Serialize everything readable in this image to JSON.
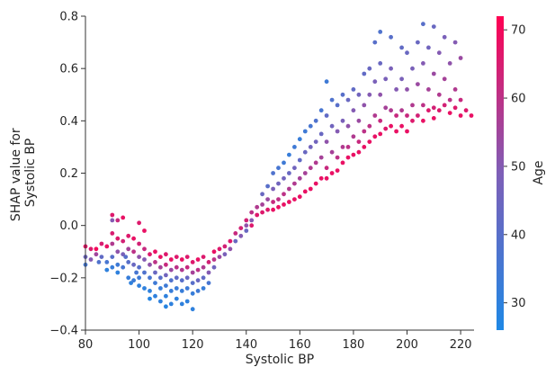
{
  "chart_data": {
    "type": "scatter",
    "title": "",
    "xlabel": "Systolic BP",
    "ylabel_lines": [
      "SHAP value for",
      "Systolic BP"
    ],
    "xlim": [
      80,
      225
    ],
    "ylim": [
      -0.4,
      0.8
    ],
    "xticks": [
      80,
      100,
      120,
      140,
      160,
      180,
      200,
      220
    ],
    "xtick_labels": [
      "80",
      "100",
      "120",
      "140",
      "160",
      "180",
      "200",
      "220"
    ],
    "yticks": [
      -0.4,
      -0.2,
      0.0,
      0.2,
      0.4,
      0.6,
      0.8
    ],
    "ytick_labels": [
      "−0.4",
      "−0.2",
      "0.0",
      "0.2",
      "0.4",
      "0.6",
      "0.8"
    ],
    "grid": false,
    "colorbar": {
      "label": "Age",
      "range": [
        26,
        72
      ],
      "ticks": [
        30,
        40,
        50,
        60,
        70
      ],
      "tick_labels": [
        "30",
        "40",
        "50",
        "60",
        "70"
      ],
      "color_low": "#1e88e5",
      "color_mid": "#7e5fb7",
      "color_high": "#ff0052"
    },
    "points": [
      [
        80,
        -0.08,
        68
      ],
      [
        80,
        -0.12,
        45
      ],
      [
        80,
        -0.15,
        35
      ],
      [
        82,
        -0.09,
        66
      ],
      [
        82,
        -0.13,
        50
      ],
      [
        84,
        -0.09,
        70
      ],
      [
        84,
        -0.11,
        55
      ],
      [
        85,
        -0.14,
        38
      ],
      [
        86,
        -0.07,
        65
      ],
      [
        86,
        -0.12,
        42
      ],
      [
        88,
        -0.08,
        68
      ],
      [
        88,
        -0.14,
        36
      ],
      [
        88,
        -0.17,
        30
      ],
      [
        90,
        0.04,
        66
      ],
      [
        90,
        0.02,
        50
      ],
      [
        90,
        -0.03,
        65
      ],
      [
        90,
        -0.07,
        58
      ],
      [
        90,
        -0.12,
        40
      ],
      [
        90,
        -0.16,
        32
      ],
      [
        92,
        0.02,
        62
      ],
      [
        92,
        -0.05,
        66
      ],
      [
        92,
        -0.1,
        52
      ],
      [
        92,
        -0.15,
        34
      ],
      [
        92,
        -0.18,
        30
      ],
      [
        94,
        0.03,
        68
      ],
      [
        94,
        -0.06,
        64
      ],
      [
        94,
        -0.11,
        48
      ],
      [
        94,
        -0.16,
        36
      ],
      [
        95,
        -0.12,
        40
      ],
      [
        96,
        -0.04,
        66
      ],
      [
        96,
        -0.09,
        56
      ],
      [
        96,
        -0.14,
        40
      ],
      [
        96,
        -0.2,
        32
      ],
      [
        97,
        -0.22,
        30
      ],
      [
        98,
        -0.05,
        68
      ],
      [
        98,
        -0.1,
        60
      ],
      [
        98,
        -0.15,
        44
      ],
      [
        98,
        -0.21,
        33
      ],
      [
        99,
        -0.18,
        36
      ],
      [
        100,
        0.01,
        66
      ],
      [
        100,
        -0.07,
        64
      ],
      [
        100,
        -0.12,
        52
      ],
      [
        100,
        -0.16,
        40
      ],
      [
        100,
        -0.2,
        34
      ],
      [
        100,
        -0.23,
        30
      ],
      [
        102,
        -0.02,
        68
      ],
      [
        102,
        -0.09,
        62
      ],
      [
        102,
        -0.13,
        50
      ],
      [
        102,
        -0.18,
        38
      ],
      [
        102,
        -0.24,
        30
      ],
      [
        104,
        -0.11,
        66
      ],
      [
        104,
        -0.15,
        52
      ],
      [
        104,
        -0.2,
        36
      ],
      [
        104,
        -0.25,
        30
      ],
      [
        104,
        -0.28,
        28
      ],
      [
        106,
        -0.1,
        68
      ],
      [
        106,
        -0.14,
        60
      ],
      [
        106,
        -0.18,
        44
      ],
      [
        106,
        -0.22,
        34
      ],
      [
        106,
        -0.27,
        30
      ],
      [
        108,
        -0.12,
        68
      ],
      [
        108,
        -0.16,
        56
      ],
      [
        108,
        -0.2,
        40
      ],
      [
        108,
        -0.24,
        32
      ],
      [
        108,
        -0.29,
        30
      ],
      [
        110,
        -0.11,
        66
      ],
      [
        110,
        -0.15,
        62
      ],
      [
        110,
        -0.19,
        46
      ],
      [
        110,
        -0.23,
        34
      ],
      [
        110,
        -0.27,
        30
      ],
      [
        110,
        -0.31,
        28
      ],
      [
        112,
        -0.13,
        68
      ],
      [
        112,
        -0.17,
        54
      ],
      [
        112,
        -0.21,
        38
      ],
      [
        112,
        -0.25,
        32
      ],
      [
        112,
        -0.3,
        30
      ],
      [
        114,
        -0.12,
        66
      ],
      [
        114,
        -0.16,
        60
      ],
      [
        114,
        -0.2,
        42
      ],
      [
        114,
        -0.24,
        33
      ],
      [
        114,
        -0.28,
        30
      ],
      [
        116,
        -0.13,
        68
      ],
      [
        116,
        -0.17,
        58
      ],
      [
        116,
        -0.21,
        40
      ],
      [
        116,
        -0.25,
        32
      ],
      [
        116,
        -0.3,
        30
      ],
      [
        118,
        -0.12,
        66
      ],
      [
        118,
        -0.16,
        62
      ],
      [
        118,
        -0.2,
        44
      ],
      [
        118,
        -0.24,
        34
      ],
      [
        118,
        -0.29,
        30
      ],
      [
        120,
        -0.14,
        66
      ],
      [
        120,
        -0.18,
        56
      ],
      [
        120,
        -0.22,
        40
      ],
      [
        120,
        -0.26,
        32
      ],
      [
        120,
        -0.32,
        30
      ],
      [
        122,
        -0.13,
        68
      ],
      [
        122,
        -0.17,
        60
      ],
      [
        122,
        -0.21,
        44
      ],
      [
        122,
        -0.25,
        34
      ],
      [
        124,
        -0.12,
        66
      ],
      [
        124,
        -0.16,
        58
      ],
      [
        124,
        -0.2,
        42
      ],
      [
        124,
        -0.24,
        32
      ],
      [
        126,
        -0.14,
        64
      ],
      [
        126,
        -0.18,
        50
      ],
      [
        126,
        -0.22,
        36
      ],
      [
        128,
        -0.1,
        68
      ],
      [
        128,
        -0.13,
        60
      ],
      [
        128,
        -0.16,
        46
      ],
      [
        130,
        -0.09,
        66
      ],
      [
        130,
        -0.12,
        54
      ],
      [
        132,
        -0.08,
        64
      ],
      [
        132,
        -0.11,
        48
      ],
      [
        134,
        -0.06,
        66
      ],
      [
        134,
        -0.09,
        52
      ],
      [
        136,
        -0.03,
        62
      ],
      [
        136,
        -0.06,
        44
      ],
      [
        138,
        -0.01,
        64
      ],
      [
        138,
        -0.04,
        50
      ],
      [
        140,
        0.02,
        64
      ],
      [
        140,
        0.0,
        52
      ],
      [
        140,
        -0.02,
        44
      ],
      [
        142,
        0.05,
        60
      ],
      [
        142,
        0.02,
        50
      ],
      [
        142,
        0.0,
        66
      ],
      [
        144,
        0.07,
        58
      ],
      [
        144,
        0.04,
        66
      ],
      [
        146,
        0.12,
        44
      ],
      [
        146,
        0.08,
        56
      ],
      [
        146,
        0.05,
        66
      ],
      [
        148,
        0.15,
        40
      ],
      [
        148,
        0.1,
        54
      ],
      [
        148,
        0.06,
        66
      ],
      [
        150,
        0.2,
        38
      ],
      [
        150,
        0.14,
        48
      ],
      [
        150,
        0.09,
        62
      ],
      [
        150,
        0.06,
        68
      ],
      [
        152,
        0.22,
        36
      ],
      [
        152,
        0.16,
        46
      ],
      [
        152,
        0.1,
        60
      ],
      [
        152,
        0.07,
        68
      ],
      [
        154,
        0.24,
        34
      ],
      [
        154,
        0.18,
        46
      ],
      [
        154,
        0.12,
        60
      ],
      [
        154,
        0.08,
        68
      ],
      [
        156,
        0.27,
        32
      ],
      [
        156,
        0.2,
        44
      ],
      [
        156,
        0.14,
        58
      ],
      [
        156,
        0.09,
        68
      ],
      [
        158,
        0.3,
        34
      ],
      [
        158,
        0.22,
        46
      ],
      [
        158,
        0.16,
        58
      ],
      [
        158,
        0.1,
        68
      ],
      [
        160,
        0.33,
        32
      ],
      [
        160,
        0.25,
        42
      ],
      [
        160,
        0.18,
        56
      ],
      [
        160,
        0.11,
        68
      ],
      [
        162,
        0.36,
        34
      ],
      [
        162,
        0.28,
        44
      ],
      [
        162,
        0.2,
        56
      ],
      [
        162,
        0.13,
        68
      ],
      [
        164,
        0.38,
        36
      ],
      [
        164,
        0.3,
        46
      ],
      [
        164,
        0.22,
        58
      ],
      [
        164,
        0.14,
        68
      ],
      [
        166,
        0.4,
        38
      ],
      [
        166,
        0.32,
        46
      ],
      [
        166,
        0.24,
        58
      ],
      [
        166,
        0.16,
        68
      ],
      [
        168,
        0.44,
        36
      ],
      [
        168,
        0.35,
        44
      ],
      [
        168,
        0.26,
        56
      ],
      [
        168,
        0.18,
        68
      ],
      [
        170,
        0.55,
        34
      ],
      [
        170,
        0.42,
        42
      ],
      [
        170,
        0.32,
        52
      ],
      [
        170,
        0.22,
        62
      ],
      [
        170,
        0.18,
        68
      ],
      [
        172,
        0.48,
        38
      ],
      [
        172,
        0.38,
        46
      ],
      [
        172,
        0.28,
        56
      ],
      [
        172,
        0.2,
        68
      ],
      [
        174,
        0.46,
        40
      ],
      [
        174,
        0.36,
        50
      ],
      [
        174,
        0.26,
        60
      ],
      [
        174,
        0.21,
        68
      ],
      [
        176,
        0.5,
        40
      ],
      [
        176,
        0.4,
        48
      ],
      [
        176,
        0.3,
        58
      ],
      [
        176,
        0.24,
        68
      ],
      [
        178,
        0.48,
        44
      ],
      [
        178,
        0.38,
        52
      ],
      [
        178,
        0.3,
        60
      ],
      [
        178,
        0.26,
        68
      ],
      [
        180,
        0.52,
        42
      ],
      [
        180,
        0.44,
        50
      ],
      [
        180,
        0.34,
        58
      ],
      [
        180,
        0.27,
        68
      ],
      [
        182,
        0.5,
        46
      ],
      [
        182,
        0.4,
        54
      ],
      [
        182,
        0.32,
        62
      ],
      [
        182,
        0.28,
        68
      ],
      [
        184,
        0.58,
        42
      ],
      [
        184,
        0.46,
        52
      ],
      [
        184,
        0.36,
        60
      ],
      [
        184,
        0.3,
        68
      ],
      [
        186,
        0.6,
        44
      ],
      [
        186,
        0.5,
        50
      ],
      [
        186,
        0.38,
        60
      ],
      [
        186,
        0.32,
        68
      ],
      [
        188,
        0.7,
        40
      ],
      [
        188,
        0.55,
        48
      ],
      [
        188,
        0.42,
        58
      ],
      [
        188,
        0.34,
        68
      ],
      [
        190,
        0.74,
        38
      ],
      [
        190,
        0.62,
        44
      ],
      [
        190,
        0.5,
        52
      ],
      [
        190,
        0.4,
        62
      ],
      [
        190,
        0.35,
        68
      ],
      [
        192,
        0.56,
        48
      ],
      [
        192,
        0.45,
        56
      ],
      [
        192,
        0.37,
        66
      ],
      [
        194,
        0.72,
        40
      ],
      [
        194,
        0.6,
        48
      ],
      [
        194,
        0.44,
        58
      ],
      [
        194,
        0.38,
        68
      ],
      [
        196,
        0.52,
        50
      ],
      [
        196,
        0.42,
        62
      ],
      [
        196,
        0.36,
        68
      ],
      [
        198,
        0.68,
        42
      ],
      [
        198,
        0.56,
        48
      ],
      [
        198,
        0.44,
        58
      ],
      [
        198,
        0.38,
        68
      ],
      [
        200,
        0.66,
        44
      ],
      [
        200,
        0.52,
        52
      ],
      [
        200,
        0.42,
        62
      ],
      [
        200,
        0.36,
        68
      ],
      [
        202,
        0.6,
        48
      ],
      [
        202,
        0.46,
        58
      ],
      [
        202,
        0.4,
        66
      ],
      [
        204,
        0.7,
        44
      ],
      [
        204,
        0.54,
        54
      ],
      [
        204,
        0.42,
        64
      ],
      [
        206,
        0.77,
        40
      ],
      [
        206,
        0.62,
        50
      ],
      [
        206,
        0.46,
        60
      ],
      [
        206,
        0.4,
        68
      ],
      [
        208,
        0.68,
        46
      ],
      [
        208,
        0.52,
        56
      ],
      [
        208,
        0.44,
        66
      ],
      [
        210,
        0.76,
        44
      ],
      [
        210,
        0.58,
        54
      ],
      [
        210,
        0.45,
        64
      ],
      [
        210,
        0.41,
        68
      ],
      [
        212,
        0.66,
        50
      ],
      [
        212,
        0.5,
        58
      ],
      [
        212,
        0.44,
        66
      ],
      [
        214,
        0.72,
        48
      ],
      [
        214,
        0.56,
        56
      ],
      [
        214,
        0.46,
        64
      ],
      [
        216,
        0.62,
        52
      ],
      [
        216,
        0.48,
        60
      ],
      [
        216,
        0.43,
        68
      ],
      [
        218,
        0.7,
        50
      ],
      [
        218,
        0.52,
        58
      ],
      [
        218,
        0.45,
        66
      ],
      [
        220,
        0.64,
        54
      ],
      [
        220,
        0.48,
        62
      ],
      [
        220,
        0.42,
        68
      ],
      [
        222,
        0.44,
        66
      ],
      [
        224,
        0.42,
        68
      ]
    ]
  }
}
